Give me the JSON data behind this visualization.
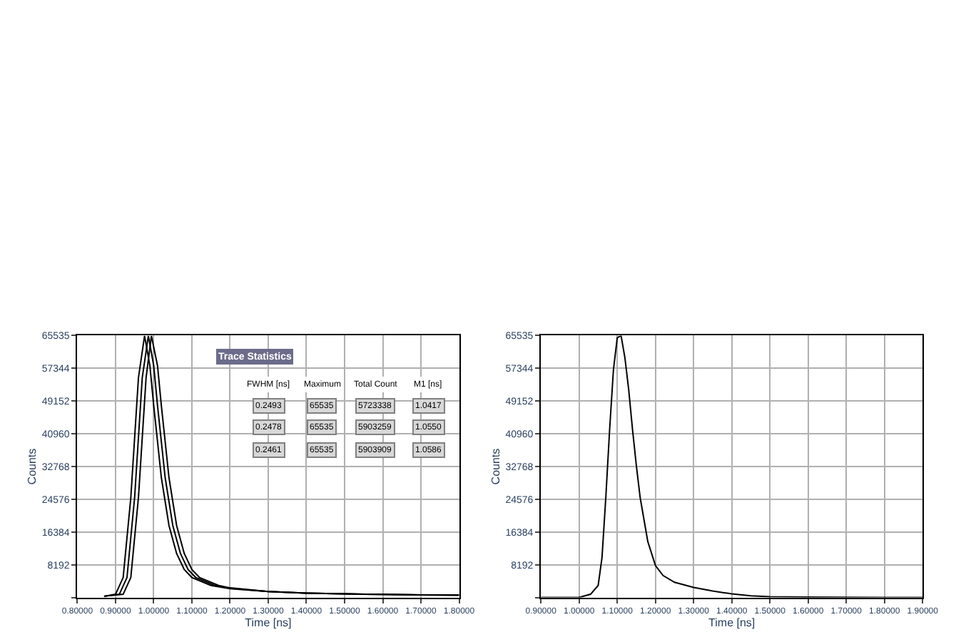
{
  "chart_data": [
    {
      "type": "line",
      "xlabel": "Time [ns]",
      "ylabel": "Counts",
      "grid": true,
      "xlim": [
        0.8,
        1.8
      ],
      "xticks": [
        {
          "value": 0.8,
          "label": "0.80000"
        },
        {
          "value": 0.9,
          "label": "0.90000"
        },
        {
          "value": 1.0,
          "label": "1.00000"
        },
        {
          "value": 1.1,
          "label": "1.10000"
        },
        {
          "value": 1.2,
          "label": "1.20000"
        },
        {
          "value": 1.3,
          "label": "1.30000"
        },
        {
          "value": 1.4,
          "label": "1.40000"
        },
        {
          "value": 1.5,
          "label": "1.50000"
        },
        {
          "value": 1.6,
          "label": "1.60000"
        },
        {
          "value": 1.7,
          "label": "1.70000"
        },
        {
          "value": 1.8,
          "label": "1.80000"
        }
      ],
      "ylim": [
        0,
        65535
      ],
      "yticks": [
        {
          "value": 0,
          "label": null
        },
        8192,
        16384,
        24576,
        32768,
        40960,
        49152,
        57344,
        65535
      ],
      "series": [
        {
          "color": "#000000",
          "x": [
            0.87,
            0.9,
            0.92,
            0.94,
            0.96,
            0.976,
            0.99,
            1.0,
            1.02,
            1.04,
            1.06,
            1.08,
            1.1,
            1.15,
            1.2,
            1.3,
            1.4,
            1.5,
            1.6,
            1.7,
            1.8
          ],
          "values": [
            300,
            800,
            5000,
            25000,
            55000,
            65500,
            58000,
            48000,
            30000,
            18000,
            11000,
            7000,
            5000,
            3000,
            2200,
            1500,
            1100,
            900,
            750,
            650,
            600
          ]
        },
        {
          "color": "#000000",
          "x": [
            0.87,
            0.91,
            0.93,
            0.95,
            0.97,
            0.986,
            1.0,
            1.01,
            1.03,
            1.05,
            1.07,
            1.09,
            1.11,
            1.16,
            1.2,
            1.3,
            1.4,
            1.5,
            1.6,
            1.7,
            1.8
          ],
          "values": [
            300,
            800,
            5000,
            25000,
            55000,
            65500,
            58000,
            48000,
            30000,
            18000,
            11000,
            7000,
            5000,
            3000,
            2300,
            1500,
            1100,
            900,
            750,
            650,
            600
          ]
        },
        {
          "color": "#000000",
          "x": [
            0.87,
            0.92,
            0.94,
            0.96,
            0.98,
            0.994,
            1.01,
            1.02,
            1.04,
            1.06,
            1.08,
            1.1,
            1.12,
            1.17,
            1.2,
            1.3,
            1.4,
            1.5,
            1.6,
            1.7,
            1.8
          ],
          "values": [
            300,
            800,
            5000,
            25000,
            55000,
            65500,
            58000,
            48000,
            30000,
            18000,
            11000,
            7000,
            5000,
            3000,
            2400,
            1500,
            1100,
            900,
            750,
            650,
            600
          ]
        }
      ],
      "annotations": [
        "Trace Statistics",
        "FWHM [ns]",
        "Maximum",
        "Total Count",
        "M1 [ns]",
        "0.2493",
        "65535",
        "5723338",
        "1.0417",
        "0.2478",
        "65535",
        "5903259",
        "1.0550",
        "0.2461",
        "65535",
        "5903909",
        "1.0586"
      ]
    },
    {
      "type": "line",
      "xlabel": "Time [ns]",
      "ylabel": "Counts",
      "grid": true,
      "xlim": [
        0.9,
        1.9
      ],
      "xticks": [
        {
          "value": 0.9,
          "label": "0.90000"
        },
        {
          "value": 1.0,
          "label": "1.00000"
        },
        {
          "value": 1.1,
          "label": "1.10000"
        },
        {
          "value": 1.2,
          "label": "1.20000"
        },
        {
          "value": 1.3,
          "label": "1.30000"
        },
        {
          "value": 1.4,
          "label": "1.40000"
        },
        {
          "value": 1.5,
          "label": "1.50000"
        },
        {
          "value": 1.6,
          "label": "1.60000"
        },
        {
          "value": 1.7,
          "label": "1.70000"
        },
        {
          "value": 1.8,
          "label": "1.80000"
        },
        {
          "value": 1.9,
          "label": "1.90000"
        }
      ],
      "ylim": [
        0,
        65535
      ],
      "yticks": [
        {
          "value": 0,
          "label": null
        },
        8192,
        16384,
        24576,
        32768,
        40960,
        49152,
        57344,
        65535
      ],
      "series": [
        {
          "color": "#000000",
          "x": [
            0.9,
            1.0,
            1.03,
            1.05,
            1.06,
            1.07,
            1.08,
            1.09,
            1.1,
            1.11,
            1.12,
            1.13,
            1.14,
            1.15,
            1.16,
            1.18,
            1.2,
            1.22,
            1.25,
            1.3,
            1.35,
            1.4,
            1.45,
            1.5,
            1.6,
            1.8,
            1.9
          ],
          "values": [
            0,
            0,
            800,
            3000,
            10000,
            25000,
            42000,
            57000,
            65000,
            65500,
            60000,
            52000,
            42000,
            33000,
            25000,
            14000,
            8000,
            5500,
            3800,
            2500,
            1600,
            900,
            400,
            200,
            100,
            0,
            0
          ]
        }
      ]
    }
  ]
}
